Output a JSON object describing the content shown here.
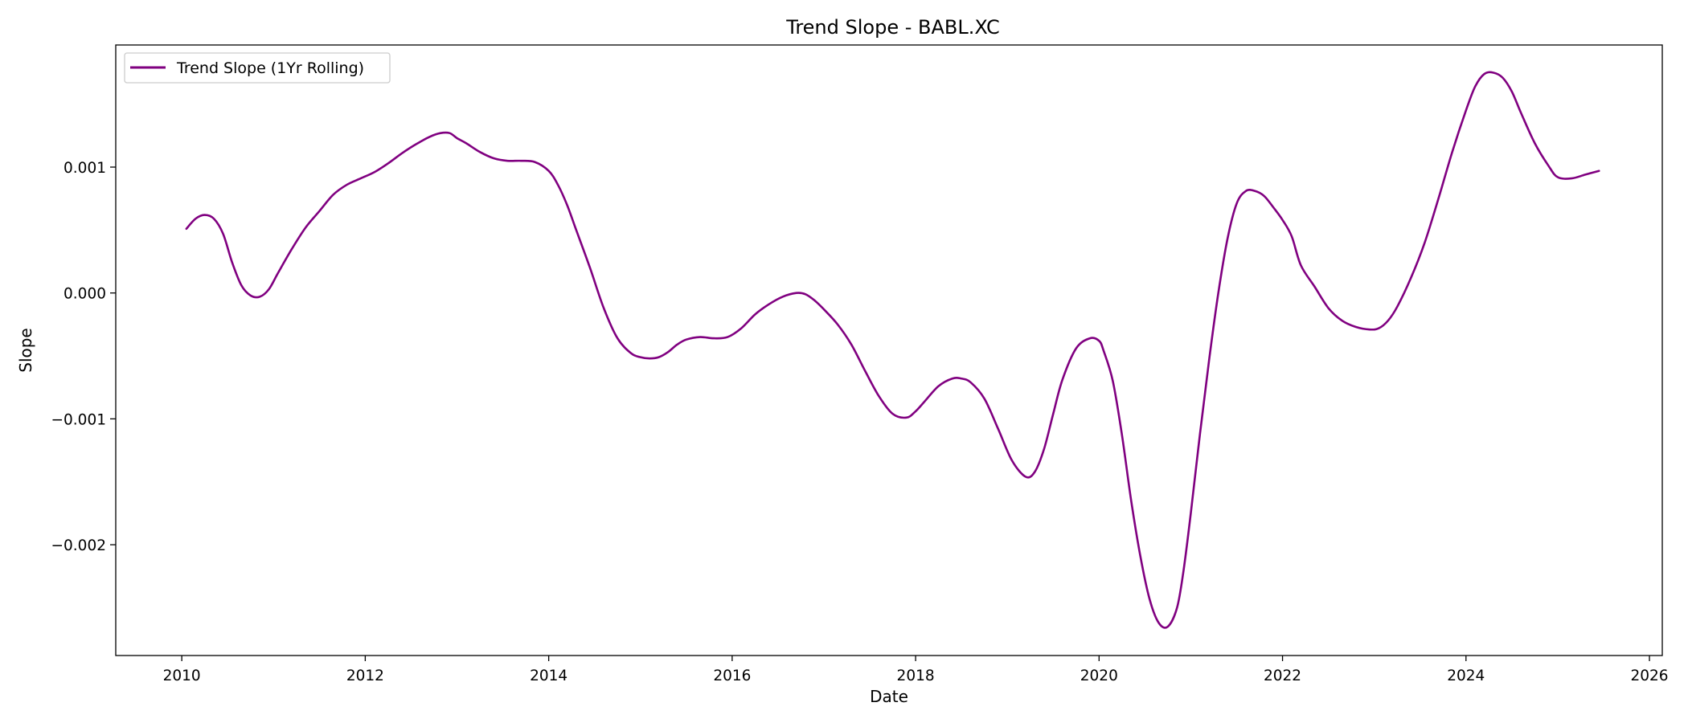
{
  "chart_data": {
    "type": "line",
    "title": "Trend Slope - BABL.XC",
    "xlabel": "Date",
    "ylabel": "Slope",
    "xlim": [
      2009.28,
      2026.14
    ],
    "ylim": [
      -0.00288,
      0.00197
    ],
    "xticks": [
      2010,
      2012,
      2014,
      2016,
      2018,
      2020,
      2022,
      2024,
      2026
    ],
    "xtick_labels": [
      "2010",
      "2012",
      "2014",
      "2016",
      "2018",
      "2020",
      "2022",
      "2024",
      "2026"
    ],
    "yticks": [
      0.001,
      0.0,
      -0.001,
      -0.002
    ],
    "ytick_labels": [
      "0.001",
      "0.000",
      "−0.001",
      "−0.002"
    ],
    "grid": false,
    "legend_position": "top-left",
    "colors": {
      "series": "#800080"
    },
    "series": [
      {
        "name": "Trend Slope (1Yr Rolling)",
        "x": [
          2010.05,
          2010.15,
          2010.25,
          2010.35,
          2010.45,
          2010.55,
          2010.65,
          2010.75,
          2010.85,
          2010.95,
          2011.05,
          2011.2,
          2011.35,
          2011.5,
          2011.65,
          2011.8,
          2011.95,
          2012.1,
          2012.25,
          2012.4,
          2012.55,
          2012.7,
          2012.82,
          2012.92,
          2013.0,
          2013.1,
          2013.25,
          2013.4,
          2013.55,
          2013.7,
          2013.85,
          2014.0,
          2014.1,
          2014.2,
          2014.3,
          2014.45,
          2014.6,
          2014.75,
          2014.9,
          2015.0,
          2015.1,
          2015.2,
          2015.3,
          2015.4,
          2015.5,
          2015.65,
          2015.8,
          2015.95,
          2016.1,
          2016.25,
          2016.4,
          2016.55,
          2016.7,
          2016.8,
          2016.9,
          2017.0,
          2017.15,
          2017.3,
          2017.45,
          2017.6,
          2017.75,
          2017.9,
          2018.0,
          2018.1,
          2018.25,
          2018.4,
          2018.5,
          2018.6,
          2018.75,
          2018.9,
          2019.05,
          2019.2,
          2019.3,
          2019.4,
          2019.5,
          2019.6,
          2019.75,
          2019.9,
          2020.0,
          2020.05,
          2020.15,
          2020.25,
          2020.35,
          2020.45,
          2020.55,
          2020.65,
          2020.75,
          2020.85,
          2020.92,
          2021.0,
          2021.1,
          2021.2,
          2021.3,
          2021.4,
          2021.5,
          2021.6,
          2021.7,
          2021.8,
          2021.9,
          2022.0,
          2022.1,
          2022.2,
          2022.35,
          2022.5,
          2022.65,
          2022.8,
          2022.95,
          2023.05,
          2023.15,
          2023.25,
          2023.4,
          2023.55,
          2023.7,
          2023.85,
          2024.0,
          2024.1,
          2024.2,
          2024.3,
          2024.4,
          2024.5,
          2024.6,
          2024.75,
          2024.9,
          2025.0,
          2025.15,
          2025.3,
          2025.45
        ],
        "y": [
          0.00051,
          0.00059,
          0.00062,
          0.00059,
          0.00047,
          0.00024,
          6e-05,
          -2e-05,
          -3e-05,
          3e-05,
          0.00016,
          0.00035,
          0.00052,
          0.00065,
          0.00078,
          0.00086,
          0.00091,
          0.00096,
          0.00103,
          0.00111,
          0.00118,
          0.00124,
          0.00127,
          0.00127,
          0.00123,
          0.00119,
          0.00112,
          0.00107,
          0.00105,
          0.00105,
          0.00104,
          0.00097,
          0.00086,
          0.0007,
          0.0005,
          0.0002,
          -0.00012,
          -0.00036,
          -0.00048,
          -0.00051,
          -0.00052,
          -0.00051,
          -0.00047,
          -0.00041,
          -0.00037,
          -0.00035,
          -0.00036,
          -0.00035,
          -0.00028,
          -0.00017,
          -9e-05,
          -3e-05,
          0.0,
          -1e-05,
          -6e-05,
          -0.00013,
          -0.00025,
          -0.00041,
          -0.00062,
          -0.00082,
          -0.00096,
          -0.00099,
          -0.00094,
          -0.00086,
          -0.00074,
          -0.00068,
          -0.00068,
          -0.00071,
          -0.00084,
          -0.00108,
          -0.00133,
          -0.00146,
          -0.00142,
          -0.00124,
          -0.00096,
          -0.00069,
          -0.00044,
          -0.00036,
          -0.00038,
          -0.00046,
          -0.0007,
          -0.00113,
          -0.00165,
          -0.00209,
          -0.00243,
          -0.00262,
          -0.00265,
          -0.0025,
          -0.00221,
          -0.00175,
          -0.00112,
          -0.00053,
          0.0,
          0.00043,
          0.00071,
          0.00081,
          0.00081,
          0.00077,
          0.00068,
          0.00058,
          0.00045,
          0.00022,
          5e-05,
          -0.00012,
          -0.00022,
          -0.00027,
          -0.00029,
          -0.00028,
          -0.00022,
          -0.00011,
          0.00012,
          0.0004,
          0.00075,
          0.00112,
          0.00145,
          0.00164,
          0.00174,
          0.00175,
          0.00171,
          0.0016,
          0.00143,
          0.00119,
          0.00101,
          0.00092,
          0.00091,
          0.00094,
          0.00097
        ]
      }
    ]
  }
}
